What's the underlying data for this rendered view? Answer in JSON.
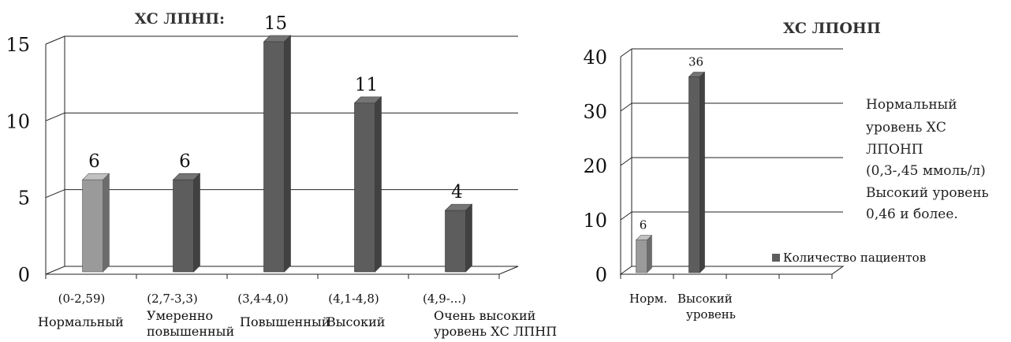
{
  "colors": {
    "highlight_bar": "#9a9a9a",
    "bar": "#5d5d5d",
    "grid": "#222222",
    "text": "#111111"
  },
  "chart_data": [
    {
      "type": "bar",
      "title": "ХС ЛПНП:",
      "ylim": [
        0,
        15
      ],
      "yticks": [
        "0",
        "5",
        "10",
        "15"
      ],
      "categories": [
        {
          "range": "(0-2,59)",
          "name": "Нормальный"
        },
        {
          "range": "(2,7-3,3)",
          "name": "Умеренно повышенный"
        },
        {
          "range": "(3,4-4,0)",
          "name": "Повышенный"
        },
        {
          "range": "(4,1-4,8)",
          "name": "Высокий"
        },
        {
          "range": "(4,9-...)",
          "name": "Очень высокий уровень ХС ЛПНП"
        }
      ],
      "values": [
        6,
        6,
        15,
        11,
        4
      ],
      "data_labels": [
        "6",
        "6",
        "15",
        "11",
        "4"
      ],
      "grid": true
    },
    {
      "type": "bar",
      "title": "ХС ЛПОНП",
      "ylim": [
        0,
        40
      ],
      "yticks": [
        "0",
        "10",
        "20",
        "30",
        "40"
      ],
      "categories": [
        "Норм.",
        "Высокий уровень"
      ],
      "series": [
        {
          "name": "Количество пациентов",
          "values": [
            6,
            36
          ]
        }
      ],
      "data_labels": [
        "6",
        "36"
      ],
      "legend_position": "right",
      "grid": true
    }
  ],
  "note": [
    "Нормальный",
    "уровень ХС",
    "ЛПОНП",
    "(0,3-,45 ммоль/л)",
    "Высокий уровень",
    "0,46 и более."
  ]
}
